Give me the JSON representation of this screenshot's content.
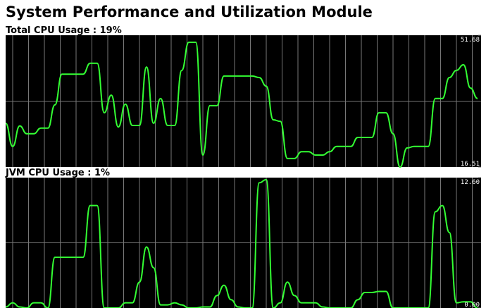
{
  "page": {
    "title": "System Performance and Utilization Module"
  },
  "chart_data": [
    {
      "type": "line",
      "title": "Total CPU Usage : 19%",
      "x": [
        0,
        1,
        2,
        3,
        4,
        5,
        6,
        7,
        8,
        9,
        10,
        11,
        12,
        13,
        14,
        15,
        16,
        17,
        18,
        19,
        20,
        21,
        22,
        23,
        24,
        25,
        26,
        27,
        28,
        29,
        30,
        31,
        32,
        33,
        34,
        35,
        36,
        37,
        38,
        39,
        40,
        41,
        42,
        43,
        44,
        45,
        46,
        47,
        48,
        49,
        50,
        51,
        52,
        53,
        54,
        55,
        56,
        57,
        58,
        59,
        60,
        61,
        62,
        63,
        64,
        65,
        66,
        67
      ],
      "xlim": [
        0,
        67.5
      ],
      "series": [
        {
          "color": "#33ff33",
          "values": [
            28.2,
            22.0,
            27.5,
            25.4,
            25.4,
            26.9,
            26.9,
            33.1,
            41.3,
            41.3,
            41.3,
            41.3,
            44.2,
            44.2,
            31.0,
            35.7,
            27.2,
            33.3,
            27.6,
            27.6,
            43.2,
            28.2,
            34.8,
            27.6,
            27.6,
            42.3,
            49.8,
            49.8,
            19.7,
            32.9,
            32.9,
            40.8,
            40.8,
            40.8,
            40.8,
            40.8,
            40.4,
            38.1,
            29.1,
            28.7,
            18.8,
            18.8,
            20.6,
            20.6,
            19.7,
            19.7,
            20.6,
            22.0,
            22.0,
            22.0,
            24.4,
            24.4,
            24.4,
            31.0,
            31.0,
            25.4,
            16.5,
            21.6,
            22.0,
            22.0,
            22.0,
            34.8,
            34.8,
            40.4,
            42.3,
            43.8,
            37.6,
            34.8
          ]
        }
      ],
      "ylim": [
        16.51,
        51.68
      ],
      "yticks": [
        16.51,
        51.68
      ]
    },
    {
      "type": "line",
      "title": "JVM CPU Usage : 1%",
      "x": [
        0,
        1,
        2,
        3,
        4,
        5,
        6,
        7,
        8,
        9,
        10,
        11,
        12,
        13,
        14,
        15,
        16,
        17,
        18,
        19,
        20,
        21,
        22,
        23,
        24,
        25,
        26,
        27,
        28,
        29,
        30,
        31,
        32,
        33,
        34,
        35,
        36,
        37,
        38,
        39,
        40,
        41,
        42,
        43,
        44,
        45,
        46,
        47,
        48,
        49,
        50,
        51,
        52,
        53,
        54,
        55,
        56,
        57,
        58,
        59,
        60,
        61,
        62,
        63,
        64,
        65,
        66,
        67
      ],
      "xlim": [
        0,
        67.5
      ],
      "series": [
        {
          "color": "#33ff33",
          "values": [
            0.1,
            0.5,
            0.1,
            0,
            0.5,
            0.5,
            0,
            4.9,
            4.9,
            4.9,
            4.9,
            4.9,
            9.9,
            9.9,
            0,
            0,
            0,
            0.5,
            0.5,
            2.5,
            5.9,
            3.9,
            0.3,
            0.3,
            0.5,
            0.3,
            0,
            0,
            0.1,
            0.1,
            1.2,
            2.2,
            0.8,
            0.1,
            0,
            0,
            12.1,
            12.4,
            0,
            0.5,
            2.5,
            1.2,
            0.5,
            0.5,
            0.5,
            0.1,
            0,
            0,
            0,
            0,
            0.8,
            1.5,
            1.5,
            1.6,
            1.6,
            0,
            0,
            0,
            0,
            0,
            0,
            9.3,
            9.9,
            7.3,
            0.5,
            0.6,
            0.6,
            0
          ]
        }
      ],
      "ylim": [
        0,
        12.6
      ],
      "yticks": [
        {
          "value": 0,
          "label": "0.00"
        },
        {
          "value": 12.6,
          "label": "12.60"
        }
      ]
    }
  ]
}
